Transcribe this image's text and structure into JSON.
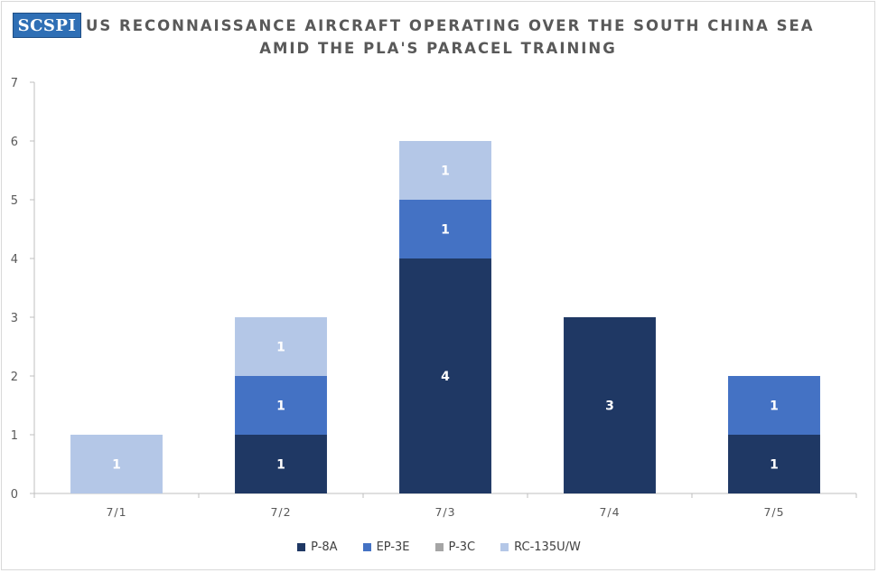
{
  "logo": {
    "text": "SCSPI",
    "color": "#2f6fb5"
  },
  "title": {
    "line1": "US RECONNAISSANCE AIRCRAFT OPERATING OVER THE SOUTH CHINA SEA",
    "line2": "AMID THE PLA'S PARACEL TRAINING"
  },
  "chart_data": {
    "type": "bar",
    "stacked": true,
    "categories": [
      "7/1",
      "7/2",
      "7/3",
      "7/4",
      "7/5"
    ],
    "series": [
      {
        "name": "P-8A",
        "color": "#1f3864",
        "values": [
          0,
          1,
          4,
          3,
          1
        ]
      },
      {
        "name": "EP-3E",
        "color": "#4472c4",
        "values": [
          0,
          1,
          1,
          0,
          1
        ]
      },
      {
        "name": "P-3C",
        "color": "#a5a5a5",
        "values": [
          0,
          0,
          0,
          0,
          0
        ]
      },
      {
        "name": "RC-135U/W",
        "color": "#b4c7e7",
        "values": [
          1,
          1,
          1,
          0,
          0
        ]
      }
    ],
    "ylim": [
      0,
      7
    ],
    "yticks": [
      0,
      1,
      2,
      3,
      4,
      5,
      6,
      7
    ],
    "grid": false,
    "legend_position": "bottom"
  }
}
